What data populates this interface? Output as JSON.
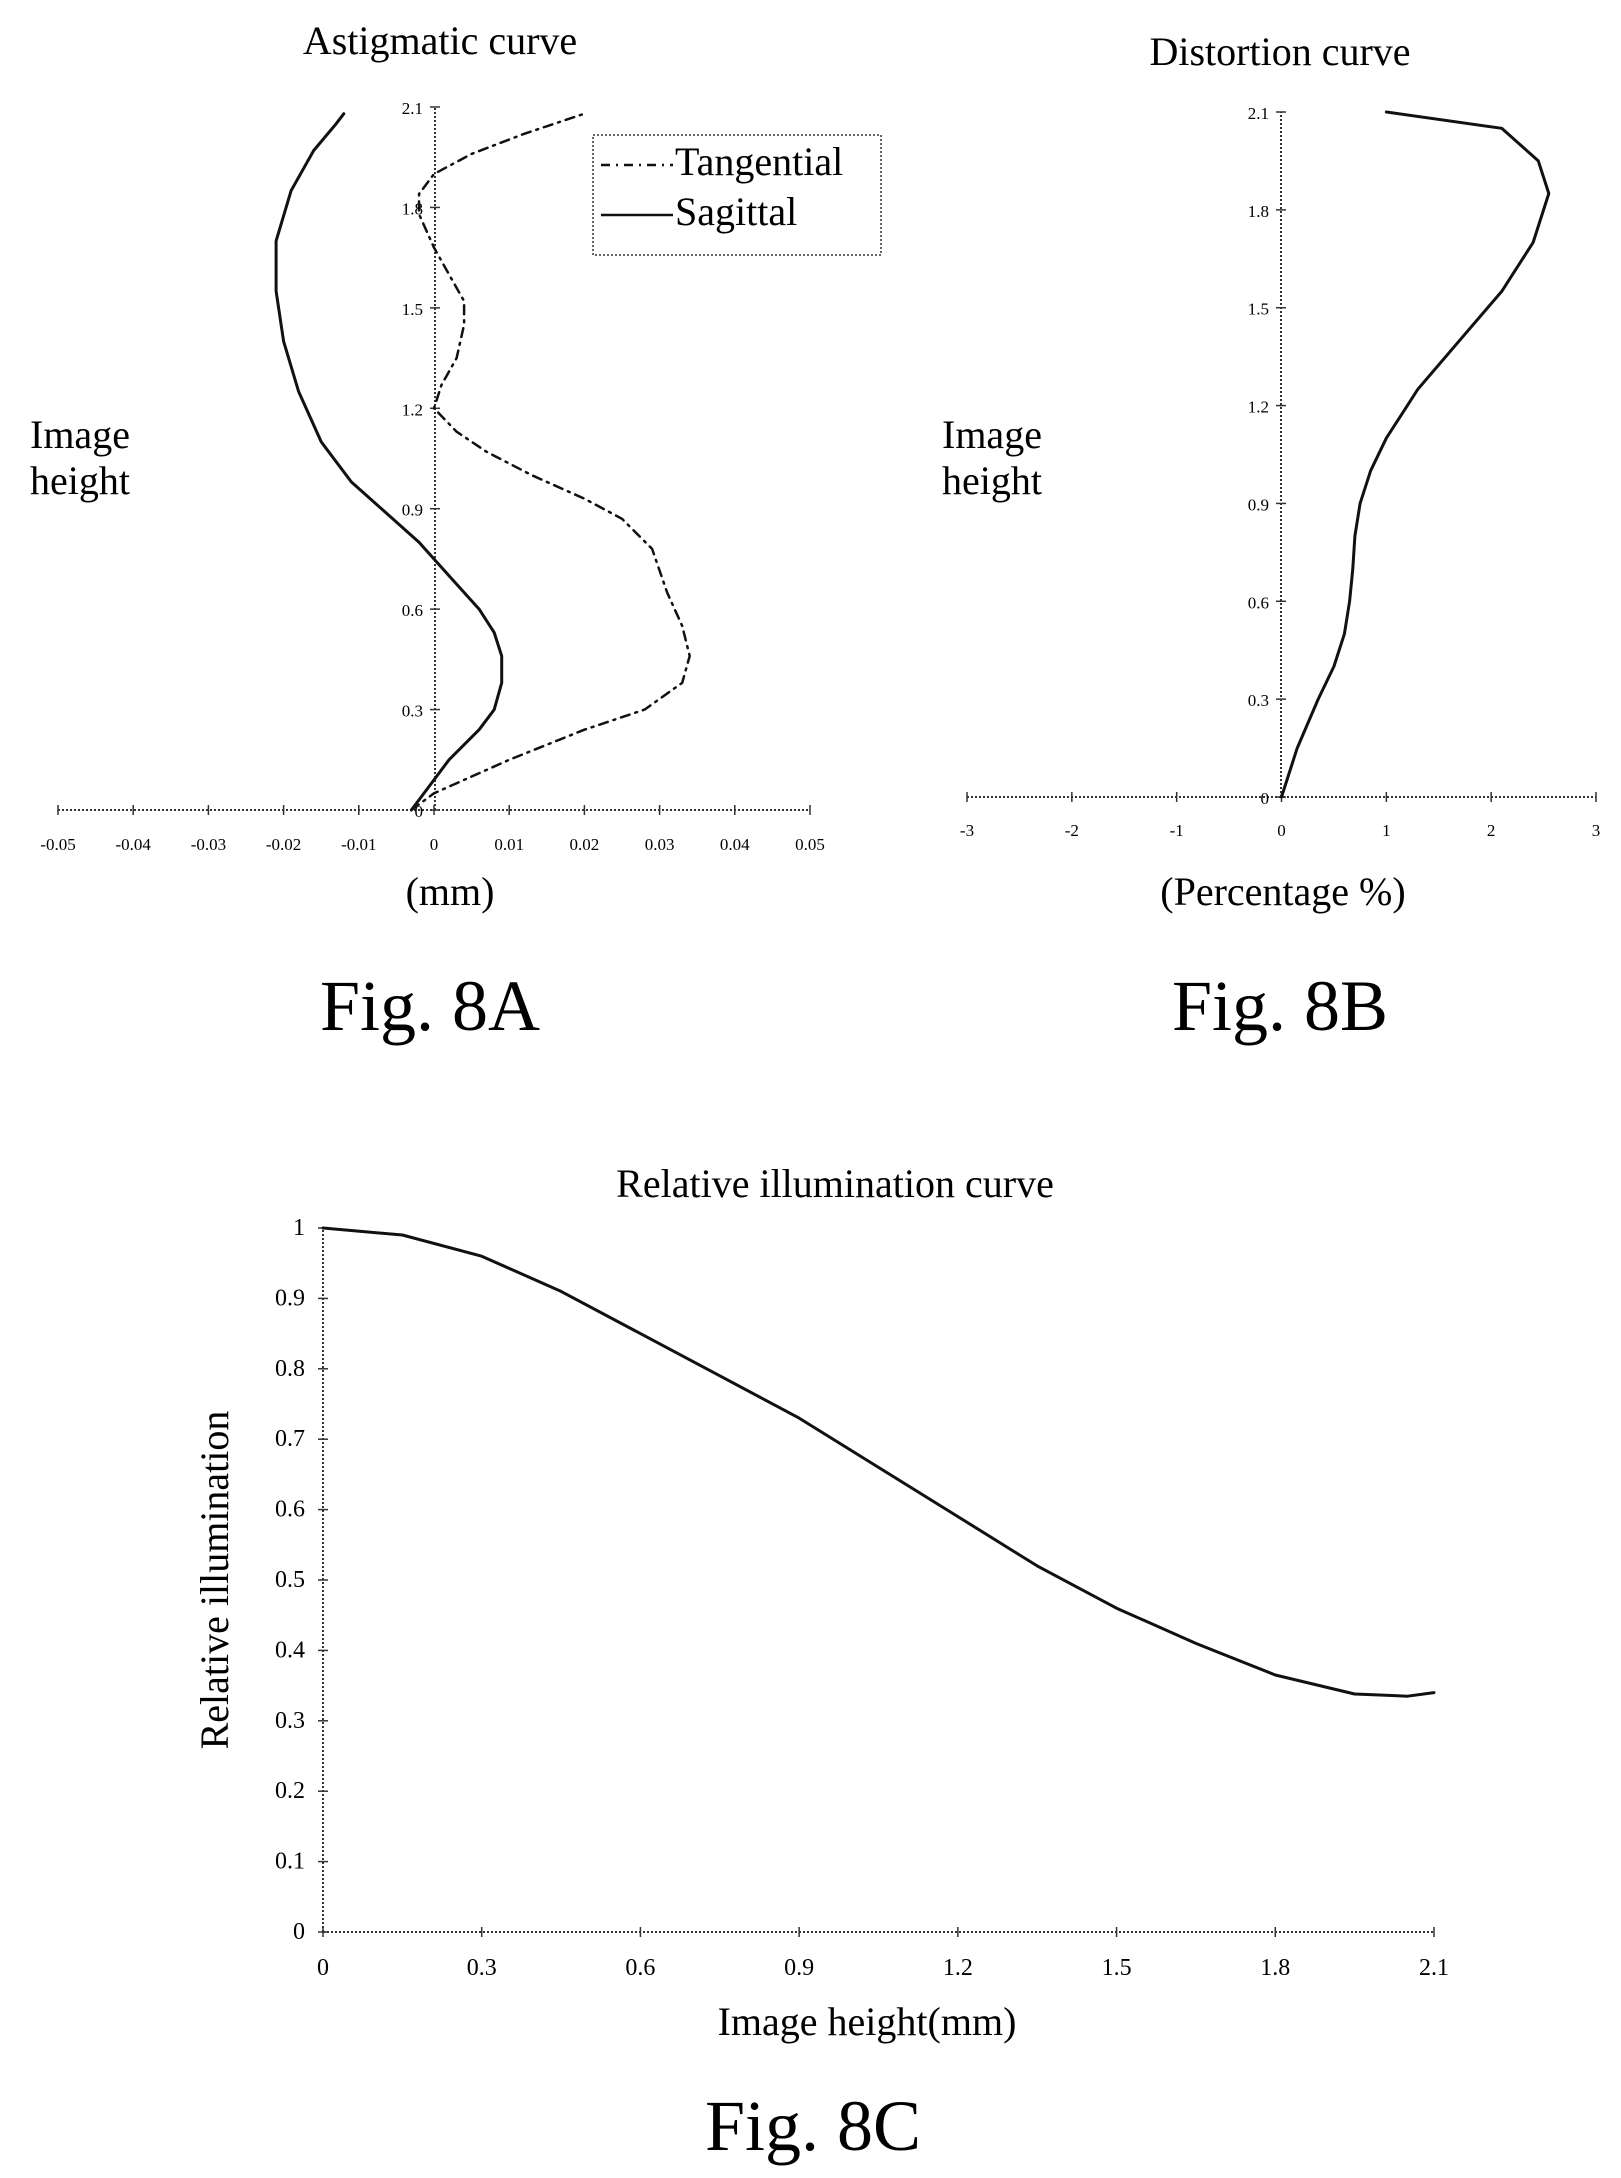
{
  "figures": {
    "fig8a": {
      "caption": "Fig. 8A"
    },
    "fig8b": {
      "caption": "Fig. 8B"
    },
    "fig8c": {
      "caption": "Fig. 8C"
    }
  },
  "chart_data": [
    {
      "id": "fig8a",
      "type": "line",
      "title": "Astigmatic curve",
      "xlabel": "(mm)",
      "ylabel": "Image height",
      "xlim": [
        -0.05,
        0.05
      ],
      "ylim": [
        0,
        2.1
      ],
      "x_ticks": [
        -0.05,
        -0.04,
        -0.03,
        -0.02,
        -0.01,
        0,
        0.01,
        0.02,
        0.03,
        0.04,
        0.05
      ],
      "x_tick_labels": [
        "-0.05",
        "-0.04",
        "-0.03",
        "-0.02",
        "-0.01",
        "0",
        "0.01",
        "0.02",
        "0.03",
        "0.04",
        "0.05"
      ],
      "y_ticks": [
        0,
        0.3,
        0.6,
        0.9,
        1.2,
        1.5,
        1.8,
        2.1
      ],
      "y_tick_labels": [
        "0",
        "0.3",
        "0.6",
        "0.9",
        "1.2",
        "1.5",
        "1.8",
        "2.1"
      ],
      "legend": "top-right",
      "series": [
        {
          "name": "Tangential",
          "style": "dashed",
          "points": [
            [
              -0.003,
              0.0
            ],
            [
              0.0,
              0.05
            ],
            [
              0.01,
              0.15
            ],
            [
              0.02,
              0.24
            ],
            [
              0.028,
              0.3
            ],
            [
              0.033,
              0.38
            ],
            [
              0.034,
              0.46
            ],
            [
              0.033,
              0.55
            ],
            [
              0.031,
              0.65
            ],
            [
              0.029,
              0.78
            ],
            [
              0.025,
              0.87
            ],
            [
              0.02,
              0.93
            ],
            [
              0.013,
              1.0
            ],
            [
              0.007,
              1.07
            ],
            [
              0.003,
              1.13
            ],
            [
              0.0,
              1.2
            ],
            [
              0.001,
              1.27
            ],
            [
              0.003,
              1.35
            ],
            [
              0.004,
              1.45
            ],
            [
              0.004,
              1.52
            ],
            [
              0.002,
              1.6
            ],
            [
              0.0,
              1.68
            ],
            [
              -0.002,
              1.78
            ],
            [
              -0.002,
              1.84
            ],
            [
              0.0,
              1.9
            ],
            [
              0.005,
              1.96
            ],
            [
              0.012,
              2.02
            ],
            [
              0.02,
              2.08
            ]
          ]
        },
        {
          "name": "Sagittal",
          "style": "solid",
          "points": [
            [
              -0.003,
              0.0
            ],
            [
              -0.001,
              0.06
            ],
            [
              0.002,
              0.15
            ],
            [
              0.006,
              0.24
            ],
            [
              0.008,
              0.3
            ],
            [
              0.009,
              0.38
            ],
            [
              0.009,
              0.46
            ],
            [
              0.008,
              0.53
            ],
            [
              0.006,
              0.6
            ],
            [
              0.002,
              0.7
            ],
            [
              -0.002,
              0.8
            ],
            [
              -0.006,
              0.88
            ],
            [
              -0.011,
              0.98
            ],
            [
              -0.015,
              1.1
            ],
            [
              -0.018,
              1.25
            ],
            [
              -0.02,
              1.4
            ],
            [
              -0.021,
              1.55
            ],
            [
              -0.021,
              1.7
            ],
            [
              -0.019,
              1.85
            ],
            [
              -0.016,
              1.97
            ],
            [
              -0.013,
              2.05
            ],
            [
              -0.012,
              2.08
            ]
          ]
        }
      ]
    },
    {
      "id": "fig8b",
      "type": "line",
      "title": "Distortion curve",
      "xlabel": "(Percentage %)",
      "ylabel": "Image height",
      "xlim": [
        -3,
        3
      ],
      "ylim": [
        0,
        2.1
      ],
      "x_ticks": [
        -3,
        -2,
        -1,
        0,
        1,
        2,
        3
      ],
      "x_tick_labels": [
        "-3",
        "-2",
        "-1",
        "0",
        "1",
        "2",
        "3"
      ],
      "y_ticks": [
        0,
        0.3,
        0.6,
        0.9,
        1.2,
        1.5,
        1.8,
        2.1
      ],
      "y_tick_labels": [
        "0",
        "0.3",
        "0.6",
        "0.9",
        "1.2",
        "1.5",
        "1.8",
        "2.1"
      ],
      "series": [
        {
          "name": "",
          "style": "solid",
          "points": [
            [
              0.0,
              0.0
            ],
            [
              0.15,
              0.15
            ],
            [
              0.35,
              0.3
            ],
            [
              0.5,
              0.4
            ],
            [
              0.6,
              0.5
            ],
            [
              0.65,
              0.6
            ],
            [
              0.68,
              0.7
            ],
            [
              0.7,
              0.8
            ],
            [
              0.75,
              0.9
            ],
            [
              0.85,
              1.0
            ],
            [
              1.0,
              1.1
            ],
            [
              1.3,
              1.25
            ],
            [
              1.7,
              1.4
            ],
            [
              2.1,
              1.55
            ],
            [
              2.4,
              1.7
            ],
            [
              2.55,
              1.85
            ],
            [
              2.45,
              1.95
            ],
            [
              2.1,
              2.05
            ],
            [
              1.0,
              2.1
            ]
          ]
        }
      ]
    },
    {
      "id": "fig8c",
      "type": "line",
      "title": "Relative illumination curve",
      "xlabel": "Image height(mm)",
      "ylabel": "Relative illumination",
      "xlim": [
        0,
        2.1
      ],
      "ylim": [
        0,
        1
      ],
      "x_ticks": [
        0,
        0.3,
        0.6,
        0.9,
        1.2,
        1.5,
        1.8,
        2.1
      ],
      "x_tick_labels": [
        "0",
        "0.3",
        "0.6",
        "0.9",
        "1.2",
        "1.5",
        "1.8",
        "2.1"
      ],
      "y_ticks": [
        0,
        0.1,
        0.2,
        0.3,
        0.4,
        0.5,
        0.6,
        0.7,
        0.8,
        0.9,
        1
      ],
      "y_tick_labels": [
        "0",
        "0.1",
        "0.2",
        "0.3",
        "0.4",
        "0.5",
        "0.6",
        "0.7",
        "0.8",
        "0.9",
        "1"
      ],
      "series": [
        {
          "name": "",
          "style": "solid",
          "points": [
            [
              0.0,
              1.0
            ],
            [
              0.15,
              0.99
            ],
            [
              0.3,
              0.96
            ],
            [
              0.45,
              0.91
            ],
            [
              0.6,
              0.85
            ],
            [
              0.75,
              0.79
            ],
            [
              0.9,
              0.73
            ],
            [
              1.05,
              0.66
            ],
            [
              1.2,
              0.59
            ],
            [
              1.35,
              0.52
            ],
            [
              1.5,
              0.46
            ],
            [
              1.65,
              0.41
            ],
            [
              1.8,
              0.365
            ],
            [
              1.95,
              0.338
            ],
            [
              2.05,
              0.335
            ],
            [
              2.1,
              0.34
            ]
          ]
        }
      ]
    }
  ]
}
